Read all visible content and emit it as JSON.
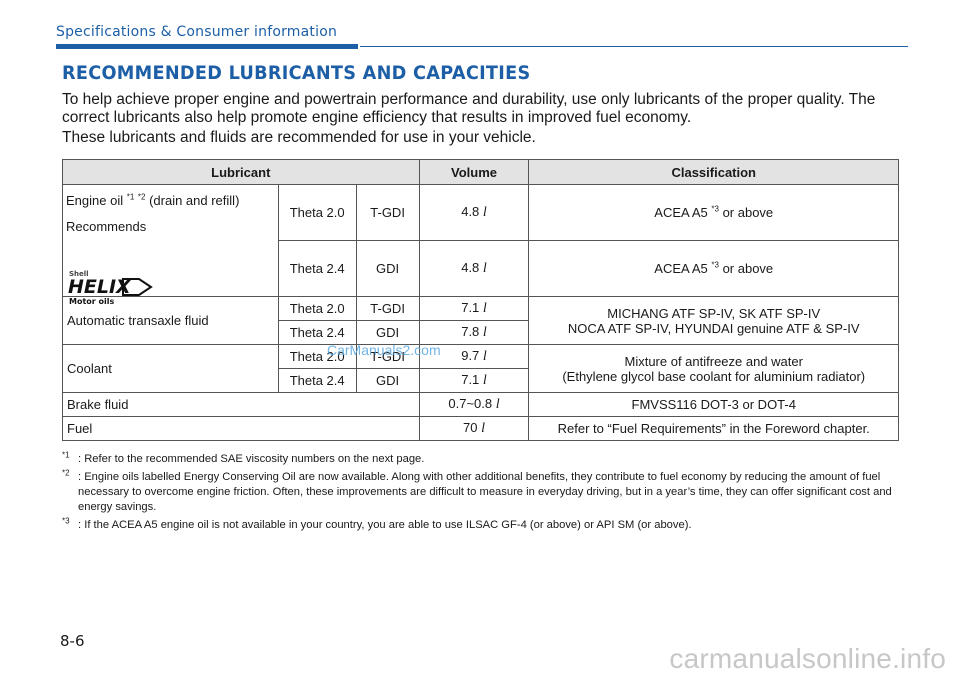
{
  "header": {
    "section": "Specifications & Consumer information"
  },
  "title": "RECOMMENDED LUBRICANTS AND CAPACITIES",
  "intro": {
    "p1": "To help achieve proper engine and powertrain performance and durability, use only lubricants of the proper quality. The correct lubricants also help promote engine efficiency that results in improved fuel economy.",
    "p2": "These lubricants and fluids are recommended for use in your vehicle."
  },
  "table": {
    "headers": {
      "lubricant": "Lubricant",
      "volume": "Volume",
      "classification": "Classification"
    },
    "engine_oil": {
      "label_pre": "Engine oil ",
      "note1": "*1",
      "note2": "*2",
      "label_post": " (drain and refill)",
      "recommends": "Recommends",
      "brand_logo": {
        "line1": "Shell",
        "line2": "HELIX",
        "line3": "Motor oils"
      },
      "rows": [
        {
          "engine": "Theta 2.0",
          "type": "T-GDI",
          "volume": "4.8",
          "unit": "l",
          "class": "ACEA A5 ",
          "class_note": "*3",
          "class_post": " or above"
        },
        {
          "engine": "Theta 2.4",
          "type": "GDI",
          "volume": "4.8",
          "unit": "l",
          "class": "ACEA A5 ",
          "class_note": "*3",
          "class_post": " or above"
        }
      ]
    },
    "atf": {
      "label": "Automatic transaxle fluid",
      "rows": [
        {
          "engine": "Theta 2.0",
          "type": "T-GDI",
          "volume": "7.1",
          "unit": "l"
        },
        {
          "engine": "Theta 2.4",
          "type": "GDI",
          "volume": "7.8",
          "unit": "l"
        }
      ],
      "class_line1": "MICHANG ATF SP-IV, SK ATF SP-IV",
      "class_line2": "NOCA ATF SP-IV, HYUNDAI genuine ATF & SP-IV"
    },
    "coolant": {
      "label": "Coolant",
      "rows": [
        {
          "engine": "Theta 2.0",
          "type": "T-GDI",
          "volume": "9.7",
          "unit": "l"
        },
        {
          "engine": "Theta 2.4",
          "type": "GDI",
          "volume": "7.1",
          "unit": "l"
        }
      ],
      "class_line1": "Mixture of antifreeze and water",
      "class_line2": "(Ethylene glycol base coolant for aluminium radiator)"
    },
    "brake": {
      "label": "Brake fluid",
      "volume": "0.7~0.8",
      "unit": "l",
      "class": "FMVSS116 DOT-3 or DOT-4"
    },
    "fuel": {
      "label": "Fuel",
      "volume": "70",
      "unit": "l",
      "class": "Refer to “Fuel Requirements” in the Foreword chapter."
    }
  },
  "watermark": "CarManuals2.com",
  "notes": [
    {
      "mark": "*1",
      "text": ": Refer to the recommended SAE viscosity numbers on the next page."
    },
    {
      "mark": "*2",
      "text": ": Engine oils labelled Energy Conserving Oil are now available. Along with other additional benefits, they contribute to fuel economy by reducing the amount of fuel necessary to overcome engine friction. Often, these improvements are difficult to measure in everyday driving, but in a year’s time, they can offer significant cost and energy savings."
    },
    {
      "mark": "*3",
      "text": ": If the ACEA A5 engine oil is not available in your country, you are able to use ILSAC GF-4 (or above) or API SM (or above)."
    }
  ],
  "page_number": "8-6",
  "footer_url": "carmanualsonline.info",
  "colors": {
    "accent": "#1d5fa7",
    "table_header_bg": "#e3e3e3",
    "watermark": "#5aa7e0",
    "footer_url": "#c7c7c7"
  }
}
